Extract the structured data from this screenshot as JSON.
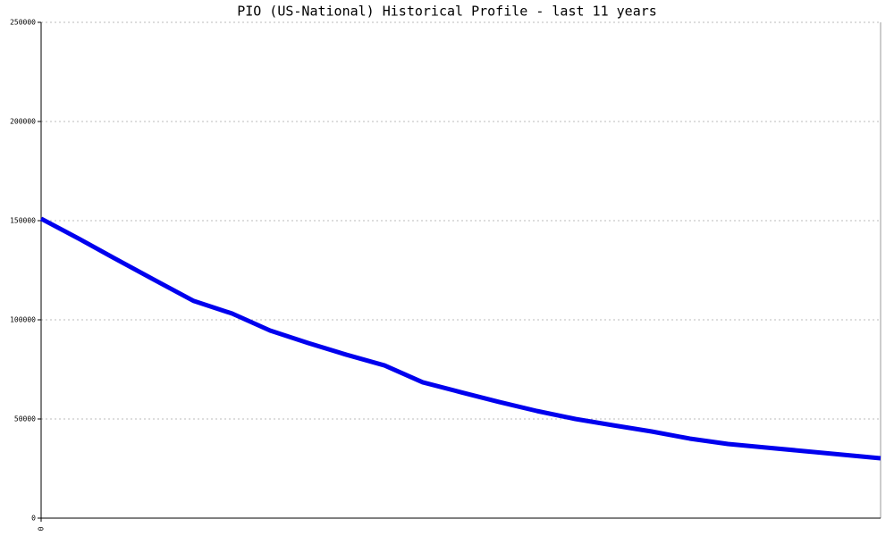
{
  "chart_data": {
    "type": "line",
    "title": "PIO (US-National) Historical Profile - last 11 years",
    "x": [
      0,
      1,
      2,
      3,
      4,
      5,
      6,
      7,
      8,
      9,
      10,
      11,
      12,
      13,
      14,
      15,
      16,
      17,
      18,
      19,
      20,
      21,
      22
    ],
    "series": [
      {
        "color": "#0000ee",
        "values": [
          151000,
          140800,
          130200,
          119800,
          109500,
          103200,
          94600,
          88300,
          82400,
          77000,
          68500,
          63500,
          58600,
          54000,
          50000,
          46800,
          43700,
          40100,
          37400,
          35600,
          33800,
          32000,
          30200
        ]
      }
    ],
    "xlim": [
      0,
      22
    ],
    "xticks": [
      0
    ],
    "ylim": [
      0,
      250000
    ],
    "yticks": [
      0,
      50000,
      100000,
      150000,
      200000,
      250000
    ],
    "grid": true
  }
}
